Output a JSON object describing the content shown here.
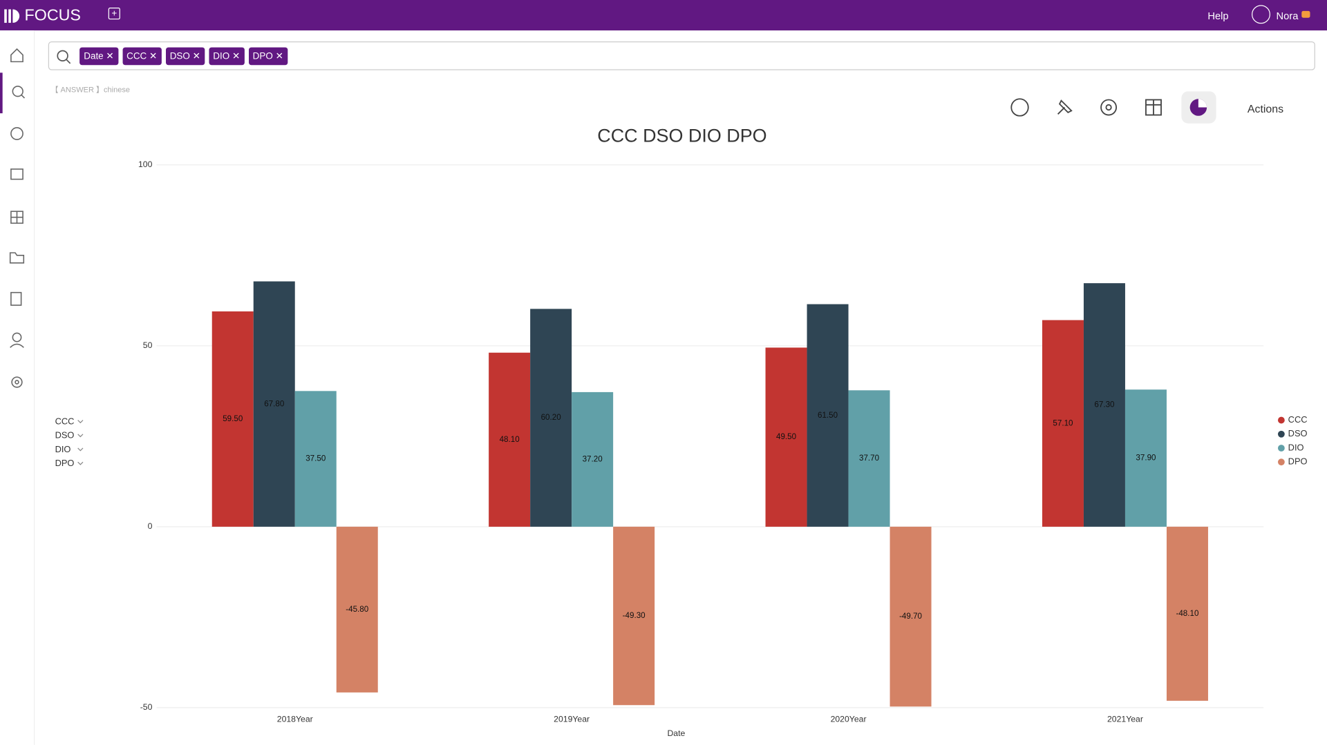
{
  "ui": {
    "brand": "FOCUS",
    "help": "Help",
    "user": "Nora",
    "tokens": [
      "Date",
      "CCC",
      "DSO",
      "DIO",
      "DPO"
    ],
    "answer_hint": "【 ANSWER 】chinese",
    "actions": "Actions"
  },
  "chart_data": {
    "type": "bar",
    "title": "CCC DSO DIO DPO",
    "x_label": "Date",
    "categories": [
      "2018Year",
      "2019Year",
      "2020Year",
      "2021Year"
    ],
    "series": [
      {
        "name": "CCC",
        "color": "#c23531",
        "values": [
          59.5,
          48.1,
          49.5,
          57.1
        ],
        "value_labels": [
          "59.50",
          "48.10",
          "49.50",
          "57.10"
        ]
      },
      {
        "name": "DSO",
        "color": "#2f4554",
        "values": [
          67.8,
          60.2,
          61.5,
          67.3
        ],
        "value_labels": [
          "67.80",
          "60.20",
          "61.50",
          "67.30"
        ]
      },
      {
        "name": "DIO",
        "color": "#61a0a8",
        "values": [
          37.5,
          37.2,
          37.7,
          37.9
        ],
        "value_labels": [
          "37.50",
          "37.20",
          "37.70",
          "37.90"
        ]
      },
      {
        "name": "DPO",
        "color": "#d48265",
        "values": [
          -45.8,
          -49.3,
          -49.7,
          -48.1
        ],
        "value_labels": [
          "-45.80",
          "-49.30",
          "-49.70",
          "-48.10"
        ]
      }
    ],
    "ylim": [
      -50,
      100
    ],
    "yticks": [
      -50,
      0,
      50,
      100
    ],
    "grid": true,
    "legend": "right"
  }
}
